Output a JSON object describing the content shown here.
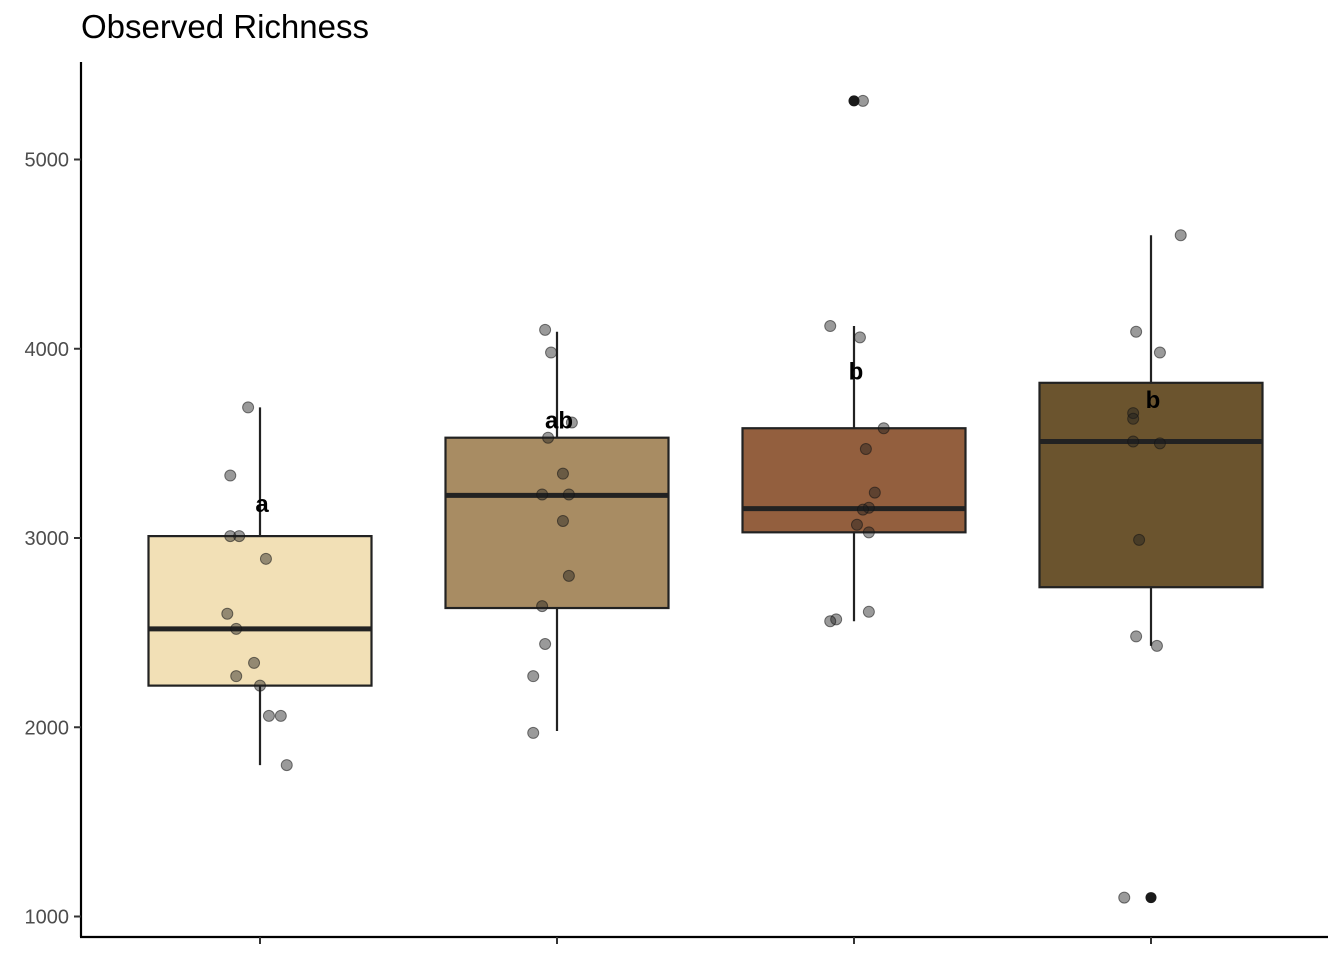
{
  "chart_data": {
    "type": "box",
    "title": "Observed Richness",
    "xlabel": "",
    "ylabel": "",
    "ylim": [
      900,
      5500
    ],
    "yticks": [
      1000,
      2000,
      3000,
      4000,
      5000
    ],
    "ytick_labels": [
      "1000",
      "2000",
      "3000",
      "4000",
      "5000"
    ],
    "categories": [
      "",
      "",
      "",
      ""
    ],
    "grid": false,
    "legend": "none",
    "groups": [
      {
        "fill": "#f2e0b6",
        "letter": "a",
        "letter_y": 3180,
        "whisker_low": 1800,
        "q1": 2220,
        "median": 2520,
        "q3": 3010,
        "whisker_high": 3690,
        "outliers": [],
        "points": [
          {
            "dx": -0.1,
            "y": 3330
          },
          {
            "dx": -0.1,
            "y": 3010
          },
          {
            "dx": -0.07,
            "y": 3010
          },
          {
            "dx": 0.02,
            "y": 2890
          },
          {
            "dx": -0.11,
            "y": 2600
          },
          {
            "dx": -0.08,
            "y": 2520
          },
          {
            "dx": -0.02,
            "y": 2340
          },
          {
            "dx": -0.08,
            "y": 2270
          },
          {
            "dx": 0.0,
            "y": 2220
          },
          {
            "dx": 0.03,
            "y": 2060
          },
          {
            "dx": 0.07,
            "y": 2060
          },
          {
            "dx": 0.09,
            "y": 1800
          },
          {
            "dx": -0.04,
            "y": 3690
          }
        ]
      },
      {
        "fill": "#a88c63",
        "letter": "ab",
        "letter_y": 3620,
        "whisker_low": 1980,
        "q1": 2630,
        "median": 3225,
        "q3": 3530,
        "whisker_high": 4090,
        "outliers": [],
        "points": [
          {
            "dx": -0.04,
            "y": 4100
          },
          {
            "dx": -0.02,
            "y": 3980
          },
          {
            "dx": 0.05,
            "y": 3610
          },
          {
            "dx": -0.03,
            "y": 3530
          },
          {
            "dx": 0.02,
            "y": 3340
          },
          {
            "dx": -0.05,
            "y": 3230
          },
          {
            "dx": 0.04,
            "y": 3230
          },
          {
            "dx": 0.02,
            "y": 3090
          },
          {
            "dx": 0.04,
            "y": 2800
          },
          {
            "dx": -0.05,
            "y": 2640
          },
          {
            "dx": -0.04,
            "y": 2440
          },
          {
            "dx": -0.08,
            "y": 2270
          },
          {
            "dx": -0.08,
            "y": 1970
          }
        ]
      },
      {
        "fill": "#935f3e",
        "letter": "b",
        "letter_y": 3880,
        "whisker_low": 2560,
        "q1": 3030,
        "median": 3155,
        "q3": 3580,
        "whisker_high": 4120,
        "outliers": [
          5310
        ],
        "points": [
          {
            "dx": 0.03,
            "y": 5310
          },
          {
            "dx": -0.08,
            "y": 4120
          },
          {
            "dx": 0.02,
            "y": 4060
          },
          {
            "dx": 0.1,
            "y": 3580
          },
          {
            "dx": 0.04,
            "y": 3470
          },
          {
            "dx": 0.07,
            "y": 3240
          },
          {
            "dx": 0.05,
            "y": 3160
          },
          {
            "dx": 0.03,
            "y": 3150
          },
          {
            "dx": 0.01,
            "y": 3070
          },
          {
            "dx": 0.05,
            "y": 3030
          },
          {
            "dx": 0.05,
            "y": 2610
          },
          {
            "dx": -0.06,
            "y": 2570
          },
          {
            "dx": -0.08,
            "y": 2560
          }
        ]
      },
      {
        "fill": "#6b542e",
        "letter": "b",
        "letter_y": 3730,
        "whisker_low": 2430,
        "q1": 2740,
        "median": 3510,
        "q3": 3820,
        "whisker_high": 4600,
        "outliers": [
          1100
        ],
        "points": [
          {
            "dx": 0.1,
            "y": 4600
          },
          {
            "dx": -0.05,
            "y": 4090
          },
          {
            "dx": 0.03,
            "y": 3980
          },
          {
            "dx": -0.06,
            "y": 3660
          },
          {
            "dx": -0.06,
            "y": 3630
          },
          {
            "dx": -0.06,
            "y": 3510
          },
          {
            "dx": 0.03,
            "y": 3500
          },
          {
            "dx": -0.04,
            "y": 2990
          },
          {
            "dx": -0.05,
            "y": 2480
          },
          {
            "dx": 0.02,
            "y": 2430
          },
          {
            "dx": -0.09,
            "y": 1100
          }
        ]
      }
    ]
  }
}
